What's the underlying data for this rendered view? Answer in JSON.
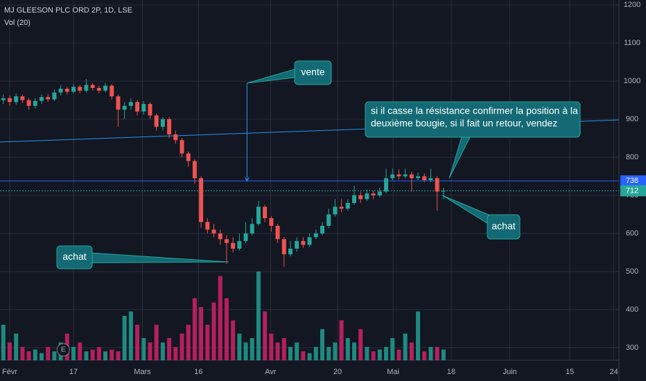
{
  "chart_data": {
    "type": "candlestick",
    "title": "MJ GLEESON PLC ORD 2P, 1D, LSE",
    "subtitle": "Vol (20)",
    "up_color": "#26a69a",
    "down_color": "#ef5350",
    "volume_up_color": "#1f8a80",
    "volume_down_color": "#b5205d",
    "x": [
      -1,
      0,
      1,
      2,
      3,
      4,
      5,
      6,
      7,
      8,
      9,
      10,
      11,
      12,
      13,
      14,
      15,
      16,
      17,
      18,
      19,
      20,
      21,
      22,
      23,
      24,
      25,
      26,
      27,
      28,
      29,
      30,
      31,
      32,
      33,
      34,
      35,
      36,
      37,
      38,
      39,
      40,
      41,
      42,
      43,
      44,
      45,
      46,
      47,
      48,
      49,
      50,
      51,
      52,
      53,
      54,
      55,
      56,
      57,
      58,
      59,
      60,
      61,
      62,
      63,
      64,
      65,
      66,
      67,
      68
    ],
    "open": [
      950,
      955,
      945,
      960,
      950,
      935,
      948,
      958,
      952,
      970,
      980,
      972,
      985,
      975,
      990,
      982,
      975,
      988,
      960,
      925,
      935,
      945,
      920,
      940,
      910,
      880,
      900,
      860,
      845,
      810,
      790,
      745,
      630,
      610,
      600,
      585,
      575,
      560,
      580,
      600,
      625,
      670,
      640,
      620,
      585,
      545,
      560,
      580,
      570,
      590,
      600,
      620,
      650,
      670,
      665,
      680,
      700,
      690,
      705,
      700,
      710,
      745,
      755,
      750,
      755,
      745,
      750,
      740,
      745,
      710
    ],
    "high": [
      965,
      962,
      968,
      965,
      955,
      955,
      965,
      966,
      978,
      990,
      985,
      992,
      990,
      1005,
      995,
      988,
      995,
      992,
      965,
      945,
      955,
      950,
      948,
      945,
      915,
      905,
      905,
      870,
      850,
      815,
      795,
      750,
      640,
      625,
      610,
      595,
      590,
      600,
      630,
      640,
      685,
      675,
      645,
      625,
      590,
      580,
      590,
      590,
      600,
      610,
      630,
      665,
      690,
      690,
      690,
      725,
      710,
      715,
      712,
      720,
      770,
      770,
      768,
      770,
      762,
      760,
      758,
      770,
      750,
      720
    ],
    "low": [
      940,
      935,
      938,
      942,
      925,
      928,
      940,
      945,
      948,
      962,
      965,
      968,
      968,
      970,
      975,
      968,
      970,
      952,
      880,
      900,
      925,
      910,
      912,
      900,
      870,
      870,
      850,
      835,
      800,
      775,
      730,
      615,
      600,
      590,
      570,
      520,
      550,
      555,
      575,
      595,
      620,
      630,
      605,
      575,
      512,
      540,
      552,
      562,
      565,
      585,
      595,
      615,
      645,
      655,
      660,
      675,
      680,
      685,
      690,
      695,
      705,
      740,
      742,
      745,
      710,
      740,
      735,
      735,
      660,
      690
    ],
    "close": [
      955,
      945,
      960,
      950,
      935,
      948,
      958,
      952,
      970,
      980,
      972,
      985,
      975,
      990,
      982,
      975,
      988,
      960,
      925,
      935,
      945,
      920,
      940,
      910,
      880,
      900,
      860,
      845,
      810,
      790,
      745,
      630,
      610,
      600,
      585,
      575,
      560,
      580,
      600,
      625,
      670,
      640,
      620,
      585,
      545,
      560,
      580,
      570,
      590,
      600,
      620,
      650,
      670,
      665,
      680,
      700,
      690,
      705,
      700,
      710,
      745,
      755,
      750,
      755,
      745,
      750,
      740,
      745,
      710,
      712
    ],
    "volume": [
      40,
      20,
      30,
      15,
      10,
      12,
      8,
      15,
      10,
      20,
      30,
      15,
      20,
      10,
      12,
      15,
      10,
      12,
      10,
      50,
      55,
      40,
      25,
      20,
      40,
      20,
      25,
      15,
      30,
      40,
      70,
      60,
      40,
      65,
      95,
      70,
      45,
      30,
      20,
      25,
      100,
      55,
      30,
      20,
      25,
      15,
      20,
      10,
      8,
      15,
      35,
      15,
      20,
      45,
      25,
      20,
      35,
      15,
      10,
      12,
      15,
      25,
      12,
      30,
      20,
      55,
      10,
      15,
      15,
      12
    ],
    "xlim": [
      -1.52,
      95.5
    ],
    "xticks": [
      {
        "value": 0,
        "label": "Févr"
      },
      {
        "value": 10,
        "label": "17"
      },
      {
        "value": 20.8,
        "label": "Mars"
      },
      {
        "value": 29.6,
        "label": "16"
      },
      {
        "value": 40.9,
        "label": "Avr"
      },
      {
        "value": 51.4,
        "label": "20"
      },
      {
        "value": 60.1,
        "label": "Mai"
      },
      {
        "value": 69.2,
        "label": "18"
      },
      {
        "value": 78.4,
        "label": "Juin"
      },
      {
        "value": 87.8,
        "label": "15"
      },
      {
        "value": 94.7,
        "label": "24"
      }
    ],
    "ylim": [
      267,
      1213
    ],
    "yticks": [
      300,
      400,
      500,
      600,
      700,
      800,
      900,
      1000,
      1100,
      1200
    ],
    "grid": true,
    "levels": [
      {
        "value": 738,
        "color": "#2962ff",
        "style": "solid"
      },
      {
        "value": 712,
        "color": "#26a69a",
        "style": "dotted"
      }
    ],
    "trendline": {
      "x": [
        -1.52,
        95.5
      ],
      "y": [
        840,
        898
      ],
      "color": "#2196f3"
    },
    "earnings_marker": {
      "x": 8.4,
      "label": "E"
    },
    "annotations": [
      {
        "text": "vente",
        "x": 37.2,
        "y": 738
      },
      {
        "text": "achat",
        "x": 34.3,
        "y": 525
      },
      {
        "text": "achat",
        "x": 67.8,
        "y": 700
      },
      {
        "text": "si il casse la résistance confirmer la position à la",
        "text2": "deuxième bougie, si il fait un retour, vendez",
        "x": 68.9,
        "y": 745
      }
    ]
  }
}
